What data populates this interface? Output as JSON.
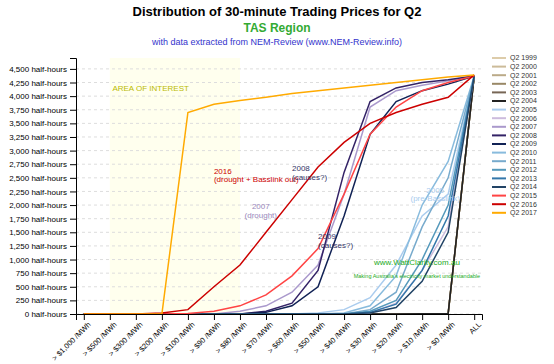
{
  "chart_data": {
    "type": "line",
    "title": "Distribution of 30-minute Trading Prices for Q2",
    "subtitle": "TAS Region",
    "subtitle2": "with data extracted from NEM-Review (www.NEM-Review.info)",
    "subtitle_color": "#33AA33",
    "subtitle2_color": "#3333CC",
    "categories": [
      "> $1,000 /MWh",
      "> $500 /MWh",
      "> $300 /MWh",
      "> $200 /MWh",
      "> $100 /MWh",
      "> $90 /MWh",
      "> $80 /MWh",
      "> $70 /MWh",
      "> $60 /MWh",
      "> $50 /MWh",
      "> $40 /MWh",
      "> $30 /MWh",
      "> $20 /MWh",
      "> $10 /MWh",
      "> $0 /MWh",
      "ALL"
    ],
    "series": [
      {
        "name": "Q2 1999",
        "color": "#DDCCAA",
        "values": [
          0,
          0,
          0,
          0,
          0,
          0,
          0,
          0,
          0,
          0,
          0,
          0,
          0,
          0,
          5,
          4390
        ]
      },
      {
        "name": "Q2 2000",
        "color": "#CCBB99",
        "values": [
          0,
          0,
          0,
          0,
          0,
          0,
          0,
          0,
          0,
          0,
          0,
          0,
          0,
          0,
          5,
          4368
        ]
      },
      {
        "name": "Q2 2001",
        "color": "#BBAA88",
        "values": [
          0,
          0,
          0,
          0,
          0,
          0,
          0,
          0,
          0,
          0,
          0,
          0,
          0,
          0,
          5,
          4368
        ]
      },
      {
        "name": "Q2 2002",
        "color": "#998866",
        "values": [
          0,
          0,
          0,
          0,
          0,
          0,
          0,
          0,
          0,
          0,
          0,
          0,
          0,
          0,
          5,
          4368
        ]
      },
      {
        "name": "Q2 2003",
        "color": "#776655",
        "values": [
          0,
          0,
          0,
          0,
          0,
          0,
          0,
          0,
          0,
          0,
          0,
          0,
          0,
          0,
          10,
          4368
        ]
      },
      {
        "name": "Q2 2004",
        "color": "#222222",
        "values": [
          0,
          0,
          0,
          0,
          0,
          0,
          0,
          0,
          0,
          0,
          0,
          0,
          0,
          5,
          10,
          4368
        ]
      },
      {
        "name": "Q2 2005",
        "color": "#AACCEE",
        "values": [
          0,
          0,
          0,
          0,
          0,
          0,
          0,
          0,
          0,
          20,
          80,
          300,
          900,
          1800,
          2200,
          4368
        ]
      },
      {
        "name": "Q2 2006",
        "color": "#CCBBDD",
        "values": [
          0,
          0,
          0,
          0,
          0,
          0,
          0,
          0,
          0,
          0,
          0,
          20,
          200,
          800,
          1600,
          4368
        ]
      },
      {
        "name": "Q2 2007",
        "color": "#AA99CC",
        "values": [
          0,
          0,
          0,
          0,
          0,
          0,
          50,
          150,
          400,
          900,
          2200,
          3800,
          4100,
          4200,
          4280,
          4368
        ]
      },
      {
        "name": "Q2 2008",
        "color": "#332266",
        "values": [
          0,
          0,
          0,
          0,
          0,
          0,
          0,
          50,
          200,
          800,
          2600,
          3900,
          4150,
          4250,
          4300,
          4368
        ]
      },
      {
        "name": "Q2 2009",
        "color": "#112255",
        "values": [
          0,
          0,
          0,
          0,
          0,
          0,
          0,
          30,
          150,
          500,
          1800,
          3300,
          3900,
          4100,
          4220,
          4368
        ]
      },
      {
        "name": "Q2 2010",
        "color": "#88BBDD",
        "values": [
          0,
          0,
          0,
          0,
          0,
          0,
          0,
          0,
          0,
          0,
          20,
          150,
          700,
          2000,
          2800,
          4368
        ]
      },
      {
        "name": "Q2 2011",
        "color": "#77AACC",
        "values": [
          0,
          0,
          0,
          0,
          0,
          0,
          0,
          0,
          0,
          0,
          0,
          80,
          400,
          1600,
          2500,
          4368
        ]
      },
      {
        "name": "Q2 2012",
        "color": "#5599BB",
        "values": [
          0,
          0,
          0,
          0,
          0,
          0,
          0,
          0,
          0,
          0,
          0,
          50,
          250,
          1000,
          2000,
          4368
        ]
      },
      {
        "name": "Q2 2013",
        "color": "#3377AA",
        "values": [
          0,
          0,
          0,
          0,
          0,
          0,
          0,
          0,
          0,
          0,
          0,
          30,
          180,
          800,
          1800,
          4368
        ]
      },
      {
        "name": "Q2 2014",
        "color": "#224466",
        "values": [
          0,
          0,
          0,
          0,
          0,
          0,
          0,
          0,
          0,
          0,
          0,
          20,
          120,
          600,
          1500,
          4368
        ]
      },
      {
        "name": "Q2 2015",
        "color": "#FF4444",
        "values": [
          0,
          0,
          0,
          0,
          10,
          50,
          150,
          350,
          700,
          1200,
          2200,
          3300,
          3800,
          4100,
          4250,
          4368
        ]
      },
      {
        "name": "Q2 2016",
        "color": "#CC0000",
        "values": [
          0,
          0,
          0,
          20,
          80,
          500,
          900,
          1500,
          2100,
          2700,
          3150,
          3500,
          3700,
          3850,
          3980,
          4390
        ]
      },
      {
        "name": "Q2 2017",
        "color": "#FFAA00",
        "values": [
          0,
          0,
          0,
          0,
          3700,
          3850,
          3920,
          3980,
          4050,
          4100,
          4150,
          4200,
          4250,
          4300,
          4350,
          4390
        ]
      }
    ],
    "ylim": [
      0,
      4700
    ],
    "yticks": [
      {
        "value": 0,
        "label": "0 half-hours"
      },
      {
        "value": 250,
        "label": "250 half-hours"
      },
      {
        "value": 500,
        "label": "500 half-hours"
      },
      {
        "value": 750,
        "label": "750 half-hours"
      },
      {
        "value": 1000,
        "label": "1,000 half-hours"
      },
      {
        "value": 1250,
        "label": "1,250 half-hours"
      },
      {
        "value": 1500,
        "label": "1,500 half-hours"
      },
      {
        "value": 1750,
        "label": "1,750 half-hours"
      },
      {
        "value": 2000,
        "label": "2,000 half-hours"
      },
      {
        "value": 2250,
        "label": "2,250 half-hours"
      },
      {
        "value": 2500,
        "label": "2,500 half-hours"
      },
      {
        "value": 2750,
        "label": "2,750 half-hours"
      },
      {
        "value": 3000,
        "label": "3,000 half-hours"
      },
      {
        "value": 3250,
        "label": "3,250 half-hours"
      },
      {
        "value": 3500,
        "label": "3,500 half-hours"
      },
      {
        "value": 3750,
        "label": "3,750 half-hours"
      },
      {
        "value": 4000,
        "label": "4,000 half-hours"
      },
      {
        "value": 4250,
        "label": "4,250 half-hours"
      },
      {
        "value": 4500,
        "label": "4,500 half-hours"
      }
    ],
    "grid": true,
    "legend": "right",
    "spans": [
      {
        "from": 1,
        "to": 6,
        "color": "#FFFFEE"
      }
    ],
    "annotations": [
      {
        "text": "AREA OF INTEREST",
        "x": 1.1,
        "y": 4150,
        "color": "#BBBB00",
        "align": "left"
      },
      {
        "text": "2016\n(drought + Basslink out)",
        "x": 5.0,
        "y": 2550,
        "color": "#CC0000",
        "align": "left"
      },
      {
        "text": "2007\n(drought)",
        "x": 6.8,
        "y": 1900,
        "color": "#9988BB",
        "align": "center"
      },
      {
        "text": "2008\n(causes?)",
        "x": 8.0,
        "y": 2600,
        "color": "#333366",
        "align": "left"
      },
      {
        "text": "2009\n(causes?)",
        "x": 9.0,
        "y": 1350,
        "color": "#333366",
        "align": "left"
      },
      {
        "text": "2005\n(pre-Basslink)",
        "x": 13.5,
        "y": 2200,
        "color": "#AACCEE",
        "align": "center"
      },
      {
        "text": "www.WattClarity.com.au",
        "x": 12.8,
        "y": 950,
        "color": "#22AA22",
        "align": "center"
      },
      {
        "text": "Making Australia's electricity market understandable",
        "x": 12.8,
        "y": 700,
        "color": "#22AA22",
        "align": "center"
      }
    ]
  }
}
